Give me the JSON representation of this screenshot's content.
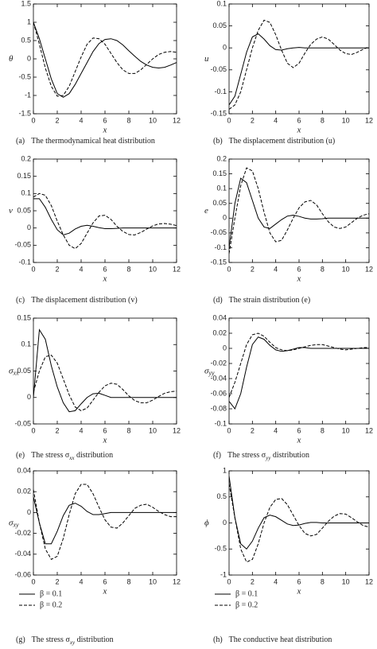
{
  "chart_data": [
    {
      "type": "line",
      "xlabel": "x",
      "ylabel": "θ",
      "caption_label": "(a)",
      "caption_text": "The thermodynamical heat distribution",
      "x": [
        0,
        0.5,
        1,
        1.5,
        2,
        2.5,
        3,
        3.5,
        4,
        4.5,
        5,
        5.5,
        6,
        6.5,
        7,
        7.5,
        8,
        8.5,
        9,
        9.5,
        10,
        10.5,
        11,
        11.5,
        12
      ],
      "xlim": [
        0,
        12
      ],
      "xticks": [
        0,
        2,
        4,
        6,
        8,
        10,
        12
      ],
      "ylim": [
        -1.5,
        1.5
      ],
      "yticks": [
        -1.5,
        -1,
        -0.5,
        0,
        0.5,
        1,
        1.5
      ],
      "series": [
        {
          "style": "solid",
          "color": "#000",
          "values": [
            1.0,
            0.55,
            0.0,
            -0.55,
            -0.95,
            -1.05,
            -0.95,
            -0.7,
            -0.4,
            -0.1,
            0.2,
            0.42,
            0.53,
            0.55,
            0.5,
            0.38,
            0.22,
            0.07,
            -0.07,
            -0.17,
            -0.23,
            -0.25,
            -0.23,
            -0.17,
            -0.1
          ]
        },
        {
          "style": "dashed",
          "color": "#000",
          "values": [
            1.0,
            0.4,
            -0.25,
            -0.75,
            -1.02,
            -1.0,
            -0.75,
            -0.35,
            0.05,
            0.4,
            0.57,
            0.55,
            0.4,
            0.15,
            -0.1,
            -0.3,
            -0.4,
            -0.4,
            -0.3,
            -0.15,
            0.0,
            0.12,
            0.18,
            0.2,
            0.18
          ]
        }
      ]
    },
    {
      "type": "line",
      "xlabel": "x",
      "ylabel": "u",
      "caption_label": "(b)",
      "caption_text": "The displacement distribution (u)",
      "x": [
        0,
        0.5,
        1,
        1.5,
        2,
        2.5,
        3,
        3.5,
        4,
        4.5,
        5,
        5.5,
        6,
        6.5,
        7,
        7.5,
        8,
        8.5,
        9,
        9.5,
        10,
        10.5,
        11,
        11.5,
        12
      ],
      "xlim": [
        0,
        12
      ],
      "xticks": [
        0,
        2,
        4,
        6,
        8,
        10,
        12
      ],
      "ylim": [
        -0.15,
        0.1
      ],
      "yticks": [
        -0.15,
        -0.1,
        -0.05,
        0,
        0.05,
        0.1
      ],
      "series": [
        {
          "style": "solid",
          "color": "#000",
          "values": [
            -0.13,
            -0.11,
            -0.06,
            -0.01,
            0.025,
            0.032,
            0.02,
            0.005,
            -0.004,
            -0.005,
            -0.002,
            0,
            0.001,
            0,
            0,
            0,
            0,
            0,
            0,
            0,
            0,
            0,
            0,
            0,
            0
          ]
        },
        {
          "style": "dashed",
          "color": "#000",
          "values": [
            -0.14,
            -0.13,
            -0.1,
            -0.05,
            0.0,
            0.04,
            0.063,
            0.058,
            0.03,
            -0.005,
            -0.035,
            -0.045,
            -0.035,
            -0.012,
            0.008,
            0.02,
            0.025,
            0.02,
            0.008,
            -0.005,
            -0.013,
            -0.015,
            -0.01,
            -0.003,
            0.002
          ]
        }
      ]
    },
    {
      "type": "line",
      "xlabel": "x",
      "ylabel": "v",
      "caption_label": "(c)",
      "caption_text": "The displacement distribution (v)",
      "x": [
        0,
        0.5,
        1,
        1.5,
        2,
        2.5,
        3,
        3.5,
        4,
        4.5,
        5,
        5.5,
        6,
        6.5,
        7,
        7.5,
        8,
        8.5,
        9,
        9.5,
        10,
        10.5,
        11,
        11.5,
        12
      ],
      "xlim": [
        0,
        12
      ],
      "xticks": [
        0,
        2,
        4,
        6,
        8,
        10,
        12
      ],
      "ylim": [
        -0.1,
        0.2
      ],
      "yticks": [
        -0.1,
        -0.05,
        0,
        0.05,
        0.1,
        0.15,
        0.2
      ],
      "series": [
        {
          "style": "solid",
          "color": "#000",
          "values": [
            0.085,
            0.085,
            0.06,
            0.025,
            -0.005,
            -0.02,
            -0.015,
            -0.003,
            0.005,
            0.008,
            0.005,
            0.001,
            -0.002,
            -0.002,
            -0.001,
            0,
            0,
            0,
            0,
            0,
            0,
            0,
            0,
            0,
            0
          ]
        },
        {
          "style": "dashed",
          "color": "#000",
          "values": [
            0.09,
            0.1,
            0.095,
            0.065,
            0.02,
            -0.02,
            -0.05,
            -0.06,
            -0.045,
            -0.015,
            0.015,
            0.035,
            0.037,
            0.025,
            0.005,
            -0.01,
            -0.019,
            -0.02,
            -0.013,
            -0.003,
            0.006,
            0.012,
            0.013,
            0.011,
            0.007
          ]
        }
      ]
    },
    {
      "type": "line",
      "xlabel": "x",
      "ylabel": "e",
      "caption_label": "(d)",
      "caption_text": "The strain distribution (e)",
      "x": [
        0,
        0.5,
        1,
        1.5,
        2,
        2.5,
        3,
        3.5,
        4,
        4.5,
        5,
        5.5,
        6,
        6.5,
        7,
        7.5,
        8,
        8.5,
        9,
        9.5,
        10,
        10.5,
        11,
        11.5,
        12
      ],
      "xlim": [
        0,
        12
      ],
      "xticks": [
        0,
        2,
        4,
        6,
        8,
        10,
        12
      ],
      "ylim": [
        -0.15,
        0.2
      ],
      "yticks": [
        -0.15,
        -0.1,
        -0.05,
        0,
        0.05,
        0.1,
        0.15,
        0.2
      ],
      "series": [
        {
          "style": "solid",
          "color": "#000",
          "values": [
            -0.1,
            0.05,
            0.135,
            0.12,
            0.06,
            0.0,
            -0.03,
            -0.035,
            -0.02,
            -0.005,
            0.007,
            0.01,
            0.006,
            0.0,
            -0.003,
            -0.003,
            -0.002,
            0,
            0,
            0,
            0,
            0,
            0,
            0,
            0
          ]
        },
        {
          "style": "dashed",
          "color": "#000",
          "values": [
            -0.12,
            0.0,
            0.11,
            0.17,
            0.16,
            0.1,
            0.02,
            -0.05,
            -0.08,
            -0.075,
            -0.04,
            0.0,
            0.035,
            0.055,
            0.06,
            0.045,
            0.015,
            -0.012,
            -0.03,
            -0.035,
            -0.03,
            -0.015,
            0.0,
            0.01,
            0.015
          ]
        }
      ]
    },
    {
      "type": "line",
      "xlabel": "x",
      "ylabel": "σ",
      "ylabel_sub": "xx",
      "caption_label": "(e)",
      "caption_text": "The stress σ",
      "caption_sub": "xx",
      "caption_tail": " distribution",
      "x": [
        0,
        0.5,
        1,
        1.5,
        2,
        2.5,
        3,
        3.5,
        4,
        4.5,
        5,
        5.5,
        6,
        6.5,
        7,
        7.5,
        8,
        8.5,
        9,
        9.5,
        10,
        10.5,
        11,
        11.5,
        12
      ],
      "xlim": [
        0,
        12
      ],
      "xticks": [
        0,
        2,
        4,
        6,
        8,
        10,
        12
      ],
      "ylim": [
        -0.05,
        0.15
      ],
      "yticks": [
        -0.05,
        0,
        0.05,
        0.1,
        0.15
      ],
      "series": [
        {
          "style": "solid",
          "color": "#000",
          "values": [
            0.0,
            0.128,
            0.11,
            0.06,
            0.02,
            -0.01,
            -0.027,
            -0.025,
            -0.012,
            0.0,
            0.007,
            0.008,
            0.004,
            0.0,
            0,
            0,
            0,
            0,
            0,
            0,
            0,
            0,
            0,
            0,
            0
          ]
        },
        {
          "style": "dashed",
          "color": "#000",
          "values": [
            0.01,
            0.05,
            0.077,
            0.08,
            0.065,
            0.035,
            0.005,
            -0.018,
            -0.025,
            -0.02,
            -0.005,
            0.01,
            0.022,
            0.027,
            0.025,
            0.015,
            0.003,
            -0.006,
            -0.01,
            -0.01,
            -0.005,
            0.002,
            0.008,
            0.011,
            0.012
          ]
        }
      ]
    },
    {
      "type": "line",
      "xlabel": "x",
      "ylabel": "σ",
      "ylabel_sub": "yy",
      "caption_label": "(f)",
      "caption_text": "The stress σ",
      "caption_sub": "yy",
      "caption_tail": " distribution",
      "x": [
        0,
        0.5,
        1,
        1.5,
        2,
        2.5,
        3,
        3.5,
        4,
        4.5,
        5,
        5.5,
        6,
        6.5,
        7,
        7.5,
        8,
        8.5,
        9,
        9.5,
        10,
        10.5,
        11,
        11.5,
        12
      ],
      "xlim": [
        0,
        12
      ],
      "xticks": [
        0,
        2,
        4,
        6,
        8,
        10,
        12
      ],
      "ylim": [
        -0.1,
        0.04
      ],
      "yticks": [
        -0.1,
        -0.08,
        -0.06,
        -0.04,
        -0.02,
        0,
        0.02,
        0.04
      ],
      "series": [
        {
          "style": "solid",
          "color": "#000",
          "values": [
            -0.07,
            -0.08,
            -0.06,
            -0.025,
            0.005,
            0.015,
            0.012,
            0.004,
            -0.002,
            -0.004,
            -0.003,
            -0.001,
            0.001,
            0.001,
            0,
            0,
            0,
            0,
            0,
            0,
            0,
            0,
            0,
            0,
            0
          ]
        },
        {
          "style": "dashed",
          "color": "#000",
          "values": [
            -0.065,
            -0.045,
            -0.02,
            0.005,
            0.018,
            0.02,
            0.016,
            0.008,
            0.001,
            -0.002,
            -0.003,
            -0.002,
            0.0,
            0.002,
            0.004,
            0.005,
            0.005,
            0.003,
            0.001,
            -0.001,
            -0.002,
            -0.001,
            0.0,
            0.001,
            0.001
          ]
        }
      ]
    },
    {
      "type": "line",
      "xlabel": "x",
      "ylabel": "σ",
      "ylabel_sub": "xy",
      "caption_label": "(g)",
      "caption_text": "The stress σ",
      "caption_sub": "xy",
      "caption_tail": " distribution",
      "legend": "below",
      "x": [
        0,
        0.5,
        1,
        1.5,
        2,
        2.5,
        3,
        3.5,
        4,
        4.5,
        5,
        5.5,
        6,
        6.5,
        7,
        7.5,
        8,
        8.5,
        9,
        9.5,
        10,
        10.5,
        11,
        11.5,
        12
      ],
      "xlim": [
        0,
        12
      ],
      "xticks": [
        0,
        2,
        4,
        6,
        8,
        10,
        12
      ],
      "ylim": [
        -0.06,
        0.04
      ],
      "yticks": [
        -0.06,
        -0.04,
        -0.02,
        0,
        0.02,
        0.04
      ],
      "series": [
        {
          "name": "β = 0.1",
          "style": "solid",
          "color": "#000",
          "values": [
            0.015,
            -0.01,
            -0.03,
            -0.03,
            -0.018,
            -0.003,
            0.007,
            0.009,
            0.006,
            0.001,
            -0.002,
            -0.002,
            -0.001,
            0,
            0,
            0,
            0,
            0,
            0,
            0,
            0,
            0,
            0,
            0,
            0
          ]
        },
        {
          "name": "β = 0.2",
          "style": "dashed",
          "color": "#000",
          "values": [
            0.022,
            -0.01,
            -0.035,
            -0.045,
            -0.042,
            -0.025,
            -0.002,
            0.018,
            0.027,
            0.027,
            0.018,
            0.005,
            -0.007,
            -0.014,
            -0.015,
            -0.01,
            -0.003,
            0.004,
            0.007,
            0.008,
            0.005,
            0.001,
            -0.002,
            -0.004,
            -0.004
          ]
        }
      ]
    },
    {
      "type": "line",
      "xlabel": "x",
      "ylabel": "ϕ",
      "caption_label": "(h)",
      "caption_text": "The conductive heat distribution",
      "legend": "below",
      "x": [
        0,
        0.5,
        1,
        1.5,
        2,
        2.5,
        3,
        3.5,
        4,
        4.5,
        5,
        5.5,
        6,
        6.5,
        7,
        7.5,
        8,
        8.5,
        9,
        9.5,
        10,
        10.5,
        11,
        11.5,
        12
      ],
      "xlim": [
        0,
        12
      ],
      "xticks": [
        0,
        2,
        4,
        6,
        8,
        10,
        12
      ],
      "ylim": [
        -1,
        1
      ],
      "yticks": [
        -1,
        -0.5,
        0,
        0.5,
        1
      ],
      "series": [
        {
          "name": "β = 0.1",
          "style": "solid",
          "color": "#000",
          "values": [
            0.9,
            0.1,
            -0.4,
            -0.5,
            -0.35,
            -0.1,
            0.1,
            0.15,
            0.12,
            0.05,
            -0.02,
            -0.05,
            -0.04,
            -0.01,
            0.01,
            0.01,
            0,
            0,
            0,
            0,
            0,
            0,
            0,
            0,
            0
          ]
        },
        {
          "name": "β = 0.2",
          "style": "dashed",
          "color": "#000",
          "values": [
            0.75,
            0.1,
            -0.5,
            -0.75,
            -0.7,
            -0.4,
            0.0,
            0.3,
            0.45,
            0.47,
            0.35,
            0.15,
            -0.05,
            -0.2,
            -0.25,
            -0.22,
            -0.1,
            0.03,
            0.13,
            0.18,
            0.17,
            0.1,
            0.02,
            -0.05,
            -0.08
          ]
        }
      ]
    }
  ]
}
